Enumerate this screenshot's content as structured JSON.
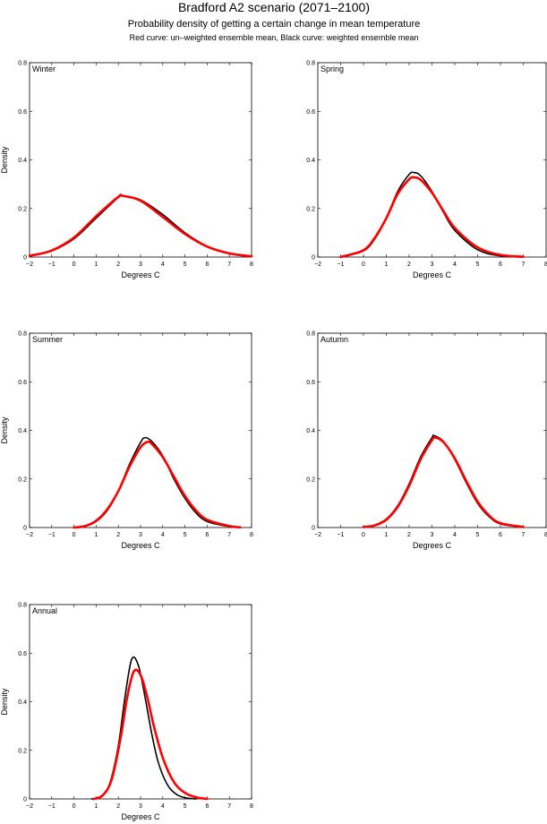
{
  "title": "Bradford A2 scenario (2071–2100)",
  "subtitle": "Probability density of getting a certain change in mean temperature",
  "note": "Red curve: un–weighted ensemble mean, Black curve: weighted ensemble mean",
  "colors": {
    "weighted": "#000000",
    "unweighted": "#ff0000",
    "axis": "#000000",
    "background": "#ffffff"
  },
  "chart_data": [
    {
      "type": "line",
      "panel": "Winter",
      "xlabel": "Degrees C",
      "ylabel": "Density",
      "xlim": [
        -2,
        8
      ],
      "ylim": [
        0,
        0.8
      ],
      "xticks": [
        "−2",
        "−1",
        "0",
        "1",
        "2",
        "3",
        "4",
        "5",
        "6",
        "7",
        "8"
      ],
      "yticks": [
        "0",
        "0.2",
        "0.4",
        "0.6",
        "0.8"
      ],
      "series": [
        {
          "curve": "weighted",
          "color": "#000000",
          "x": [
            -2,
            -1,
            0,
            1,
            2,
            2.3,
            3,
            4,
            5,
            6,
            7,
            8
          ],
          "y": [
            0.005,
            0.025,
            0.075,
            0.16,
            0.245,
            0.25,
            0.235,
            0.175,
            0.1,
            0.045,
            0.015,
            0.003
          ]
        },
        {
          "curve": "unweighted",
          "color": "#ff0000",
          "x": [
            -2,
            -1,
            0,
            1,
            2,
            2.2,
            3,
            4,
            5,
            6,
            7,
            8
          ],
          "y": [
            0.005,
            0.027,
            0.08,
            0.168,
            0.248,
            0.252,
            0.232,
            0.165,
            0.095,
            0.043,
            0.015,
            0.003
          ]
        }
      ]
    },
    {
      "type": "line",
      "panel": "Spring",
      "xlabel": "Degrees C",
      "ylabel": "",
      "xlim": [
        -2,
        8
      ],
      "ylim": [
        0,
        0.8
      ],
      "xticks": [
        "−2",
        "−1",
        "0",
        "1",
        "2",
        "3",
        "4",
        "5",
        "6",
        "7",
        "8"
      ],
      "yticks": [
        "0",
        "0.2",
        "0.4",
        "0.6",
        "0.8"
      ],
      "series": [
        {
          "curve": "weighted",
          "color": "#000000",
          "x": [
            -1,
            0,
            0.5,
            1,
            1.5,
            2,
            2.2,
            2.5,
            3,
            3.5,
            4,
            5,
            6,
            7
          ],
          "y": [
            0.0,
            0.025,
            0.075,
            0.16,
            0.27,
            0.34,
            0.348,
            0.335,
            0.27,
            0.185,
            0.11,
            0.03,
            0.005,
            0.0
          ]
        },
        {
          "curve": "unweighted",
          "color": "#ff0000",
          "x": [
            -1,
            0,
            0.5,
            1,
            1.5,
            2,
            2.2,
            2.5,
            3,
            3.5,
            4,
            5,
            6,
            7
          ],
          "y": [
            0.0,
            0.028,
            0.08,
            0.16,
            0.26,
            0.32,
            0.328,
            0.318,
            0.265,
            0.19,
            0.12,
            0.04,
            0.009,
            0.001
          ]
        }
      ]
    },
    {
      "type": "line",
      "panel": "Summer",
      "xlabel": "Degrees C",
      "ylabel": "Density",
      "xlim": [
        -2,
        8
      ],
      "ylim": [
        0,
        0.8
      ],
      "xticks": [
        "−2",
        "−1",
        "0",
        "1",
        "2",
        "3",
        "4",
        "5",
        "6",
        "7",
        "8"
      ],
      "yticks": [
        "0",
        "0.2",
        "0.4",
        "0.6",
        "0.8"
      ],
      "series": [
        {
          "curve": "weighted",
          "color": "#000000",
          "x": [
            0,
            0.5,
            1,
            1.5,
            2,
            2.5,
            3,
            3.2,
            3.5,
            4,
            4.5,
            5,
            5.5,
            6,
            7,
            7.5
          ],
          "y": [
            0.0,
            0.005,
            0.025,
            0.07,
            0.15,
            0.26,
            0.35,
            0.37,
            0.355,
            0.295,
            0.2,
            0.12,
            0.06,
            0.025,
            0.004,
            0.0
          ]
        },
        {
          "curve": "unweighted",
          "color": "#ff0000",
          "x": [
            0,
            0.5,
            1,
            1.5,
            2,
            2.5,
            3,
            3.3,
            3.5,
            4,
            4.5,
            5,
            5.5,
            6,
            7,
            7.5
          ],
          "y": [
            0.0,
            0.006,
            0.028,
            0.075,
            0.15,
            0.25,
            0.33,
            0.352,
            0.345,
            0.29,
            0.21,
            0.13,
            0.07,
            0.032,
            0.006,
            0.001
          ]
        }
      ]
    },
    {
      "type": "line",
      "panel": "Autumn",
      "xlabel": "Degrees C",
      "ylabel": "",
      "xlim": [
        -2,
        8
      ],
      "ylim": [
        0,
        0.8
      ],
      "xticks": [
        "−2",
        "−1",
        "0",
        "1",
        "2",
        "3",
        "4",
        "5",
        "6",
        "7",
        "8"
      ],
      "yticks": [
        "0",
        "0.2",
        "0.4",
        "0.6",
        "0.8"
      ],
      "series": [
        {
          "curve": "weighted",
          "color": "#000000",
          "x": [
            0,
            0.5,
            1,
            1.5,
            2,
            2.5,
            3,
            3.1,
            3.5,
            4,
            4.5,
            5,
            5.5,
            6,
            7
          ],
          "y": [
            0.002,
            0.01,
            0.035,
            0.09,
            0.18,
            0.29,
            0.37,
            0.378,
            0.355,
            0.28,
            0.185,
            0.1,
            0.045,
            0.015,
            0.002
          ]
        },
        {
          "curve": "unweighted",
          "color": "#ff0000",
          "x": [
            0,
            0.5,
            1,
            1.5,
            2,
            2.5,
            3,
            3.15,
            3.5,
            4,
            4.5,
            5,
            5.5,
            6,
            7
          ],
          "y": [
            0.002,
            0.009,
            0.032,
            0.085,
            0.172,
            0.28,
            0.36,
            0.37,
            0.352,
            0.285,
            0.192,
            0.107,
            0.05,
            0.018,
            0.002
          ]
        }
      ]
    },
    {
      "type": "line",
      "panel": "Annual",
      "xlabel": "Degrees C",
      "ylabel": "Density",
      "xlim": [
        -2,
        8
      ],
      "ylim": [
        0,
        0.8
      ],
      "xticks": [
        "−2",
        "−1",
        "0",
        "1",
        "2",
        "3",
        "4",
        "5",
        "6",
        "7",
        "8"
      ],
      "yticks": [
        "0",
        "0.2",
        "0.4",
        "0.6",
        "0.8"
      ],
      "series": [
        {
          "curve": "weighted",
          "color": "#000000",
          "x": [
            0.8,
            1.2,
            1.6,
            2.0,
            2.3,
            2.6,
            2.9,
            3.2,
            3.5,
            3.8,
            4.2,
            4.6,
            5.0,
            5.5
          ],
          "y": [
            0.0,
            0.01,
            0.06,
            0.22,
            0.42,
            0.575,
            0.55,
            0.42,
            0.27,
            0.15,
            0.06,
            0.02,
            0.005,
            0.0
          ]
        },
        {
          "curve": "unweighted",
          "color": "#ff0000",
          "x": [
            0.9,
            1.3,
            1.7,
            2.1,
            2.4,
            2.7,
            3.0,
            3.3,
            3.6,
            4.0,
            4.5,
            5.0,
            5.5,
            6.0
          ],
          "y": [
            0.0,
            0.015,
            0.08,
            0.25,
            0.42,
            0.525,
            0.51,
            0.42,
            0.3,
            0.17,
            0.07,
            0.025,
            0.007,
            0.0
          ]
        }
      ]
    }
  ]
}
